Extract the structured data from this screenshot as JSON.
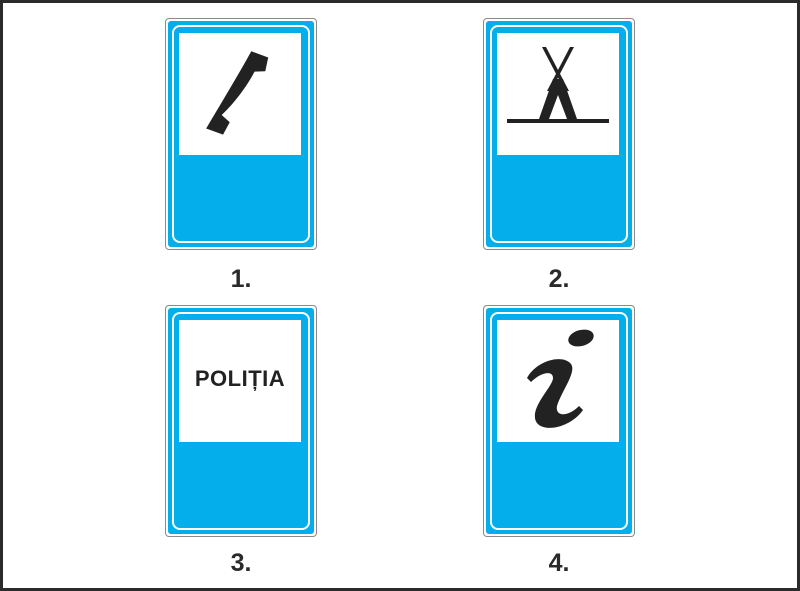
{
  "signs": [
    {
      "number": "1.",
      "symbol": "telephone-icon"
    },
    {
      "number": "2.",
      "symbol": "tent-icon"
    },
    {
      "number": "3.",
      "symbol": "text",
      "text": "POLIȚIA"
    },
    {
      "number": "4.",
      "symbol": "information-icon"
    }
  ],
  "colors": {
    "sign_blue": "#03aeea",
    "panel": "#ffffff",
    "symbol": "#222222",
    "label": "#2a2a2a"
  }
}
